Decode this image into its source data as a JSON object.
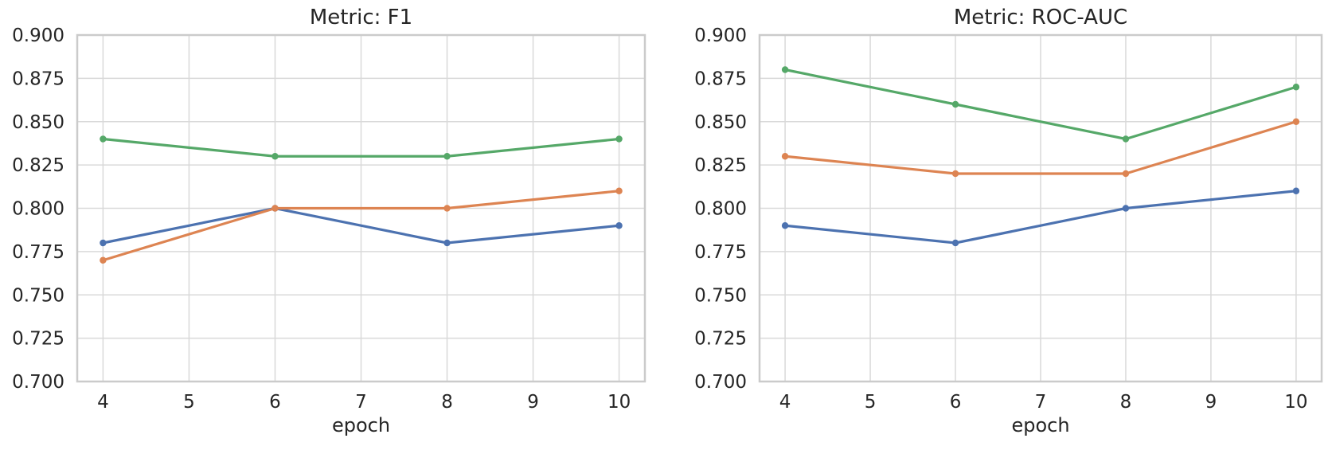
{
  "figure": {
    "background": "#ffffff"
  },
  "style": {
    "grid_color": "#d9d9d9",
    "spine_color": "#cbcbcb",
    "text_color": "#262626",
    "series_colors": {
      "blue": "#4C72B0",
      "orange": "#DD8452",
      "green": "#55A868"
    }
  },
  "chart_data": [
    {
      "type": "line",
      "title": "Metric: F1",
      "xlabel": "epoch",
      "ylabel": "",
      "grid": true,
      "legend": "none",
      "marker": "circle",
      "x": [
        4,
        6,
        8,
        10
      ],
      "x_ticks": [
        "4",
        "5",
        "6",
        "7",
        "8",
        "9",
        "10"
      ],
      "y_ticks": [
        "0.700",
        "0.725",
        "0.750",
        "0.775",
        "0.800",
        "0.825",
        "0.850",
        "0.875",
        "0.900"
      ],
      "xlim": [
        3.7,
        10.3
      ],
      "ylim": [
        0.7,
        0.9
      ],
      "series": [
        {
          "name": "blue-series",
          "color": "#4C72B0",
          "values": [
            0.78,
            0.8,
            0.78,
            0.79
          ]
        },
        {
          "name": "orange-series",
          "color": "#DD8452",
          "values": [
            0.77,
            0.8,
            0.8,
            0.81
          ]
        },
        {
          "name": "green-series",
          "color": "#55A868",
          "values": [
            0.84,
            0.83,
            0.83,
            0.84
          ]
        }
      ]
    },
    {
      "type": "line",
      "title": "Metric: ROC-AUC",
      "xlabel": "epoch",
      "ylabel": "",
      "grid": true,
      "legend": "none",
      "marker": "circle",
      "x": [
        4,
        6,
        8,
        10
      ],
      "x_ticks": [
        "4",
        "5",
        "6",
        "7",
        "8",
        "9",
        "10"
      ],
      "y_ticks": [
        "0.700",
        "0.725",
        "0.750",
        "0.775",
        "0.800",
        "0.825",
        "0.850",
        "0.875",
        "0.900"
      ],
      "xlim": [
        3.7,
        10.3
      ],
      "ylim": [
        0.7,
        0.9
      ],
      "series": [
        {
          "name": "blue-series",
          "color": "#4C72B0",
          "values": [
            0.79,
            0.78,
            0.8,
            0.81
          ]
        },
        {
          "name": "orange-series",
          "color": "#DD8452",
          "values": [
            0.83,
            0.82,
            0.82,
            0.85
          ]
        },
        {
          "name": "green-series",
          "color": "#55A868",
          "values": [
            0.88,
            0.86,
            0.84,
            0.87
          ]
        }
      ]
    }
  ]
}
